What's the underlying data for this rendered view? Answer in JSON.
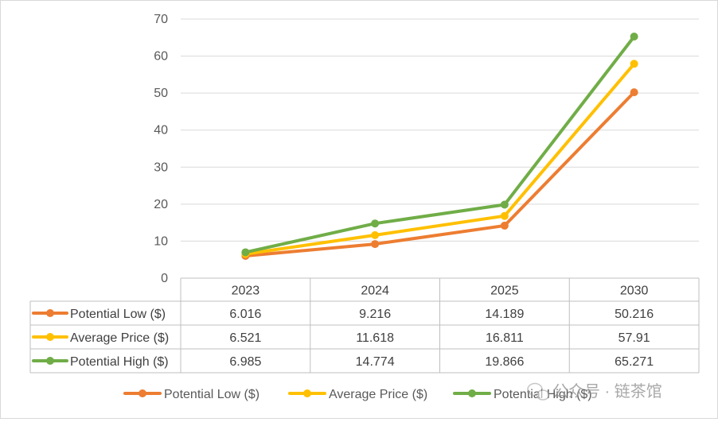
{
  "chart_data": {
    "type": "line",
    "categories": [
      "2023",
      "2024",
      "2025",
      "2030"
    ],
    "series": [
      {
        "name": "Potential Low ($)",
        "color": "#ED7D31",
        "values": [
          6.016,
          9.216,
          14.189,
          50.216
        ],
        "value_labels": [
          "6.016",
          "9.216",
          "14.189",
          "50.216"
        ]
      },
      {
        "name": "Average Price ($)",
        "color": "#FFC000",
        "values": [
          6.521,
          11.618,
          16.811,
          57.91
        ],
        "value_labels": [
          "6.521",
          "11.618",
          "16.811",
          "57.91"
        ]
      },
      {
        "name": "Potential High ($)",
        "color": "#70AD47",
        "values": [
          6.985,
          14.774,
          19.866,
          65.271
        ],
        "value_labels": [
          "6.985",
          "14.774",
          "19.866",
          "65.271"
        ]
      }
    ],
    "y_ticks": [
      "0",
      "10",
      "20",
      "30",
      "40",
      "50",
      "60",
      "70"
    ],
    "ylim": [
      0,
      70
    ],
    "grid": true,
    "legend_position": "bottom",
    "data_table": true
  },
  "watermark": {
    "text": "公众号 · 链茶馆"
  }
}
